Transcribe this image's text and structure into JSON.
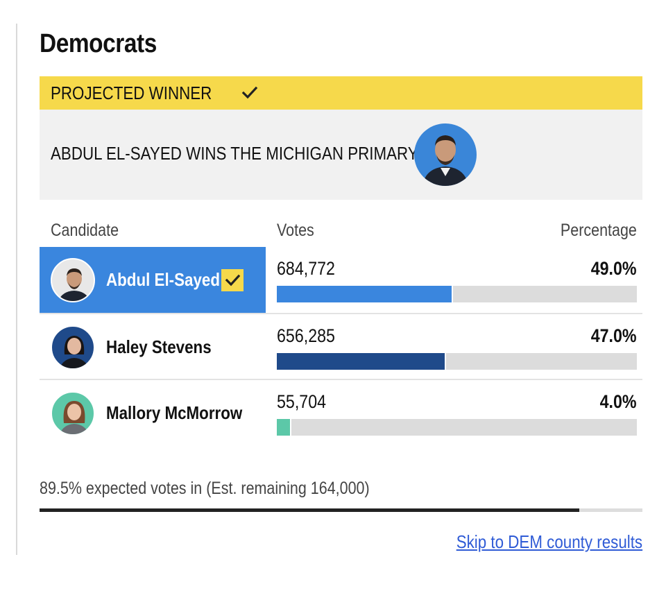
{
  "party": {
    "title": "Democrats"
  },
  "banner": {
    "label": "PROJECTED WINNER",
    "icon": "checkmark-icon",
    "color": "#f6d94b"
  },
  "winner_card": {
    "headline": "ABDUL EL-SAYED WINS THE MICHIGAN PRIMARY",
    "photo_bg": "#3a86d8"
  },
  "table": {
    "headers": {
      "candidate": "Candidate",
      "votes": "Votes",
      "percentage": "Percentage"
    },
    "rows": [
      {
        "name": "Abdul El-Sayed",
        "votes": "684,772",
        "pct_label": "49.0%",
        "pct": 49.0,
        "bar_color": "#3a86de",
        "winner": true,
        "avatar_bg": "#3a86d8"
      },
      {
        "name": "Haley Stevens",
        "votes": "656,285",
        "pct_label": "47.0%",
        "pct": 47.0,
        "bar_color": "#1f4a8a",
        "winner": false,
        "avatar_bg": "#1f4a8a"
      },
      {
        "name": "Mallory McMorrow",
        "votes": "55,704",
        "pct_label": "4.0%",
        "pct": 4.0,
        "bar_color": "#5cc8a8",
        "winner": false,
        "avatar_bg": "#5cc8a8"
      }
    ]
  },
  "reporting": {
    "text": "89.5% expected votes in (Est. remaining 164,000)",
    "fraction": 0.895
  },
  "link": {
    "label": "Skip to DEM county results"
  }
}
